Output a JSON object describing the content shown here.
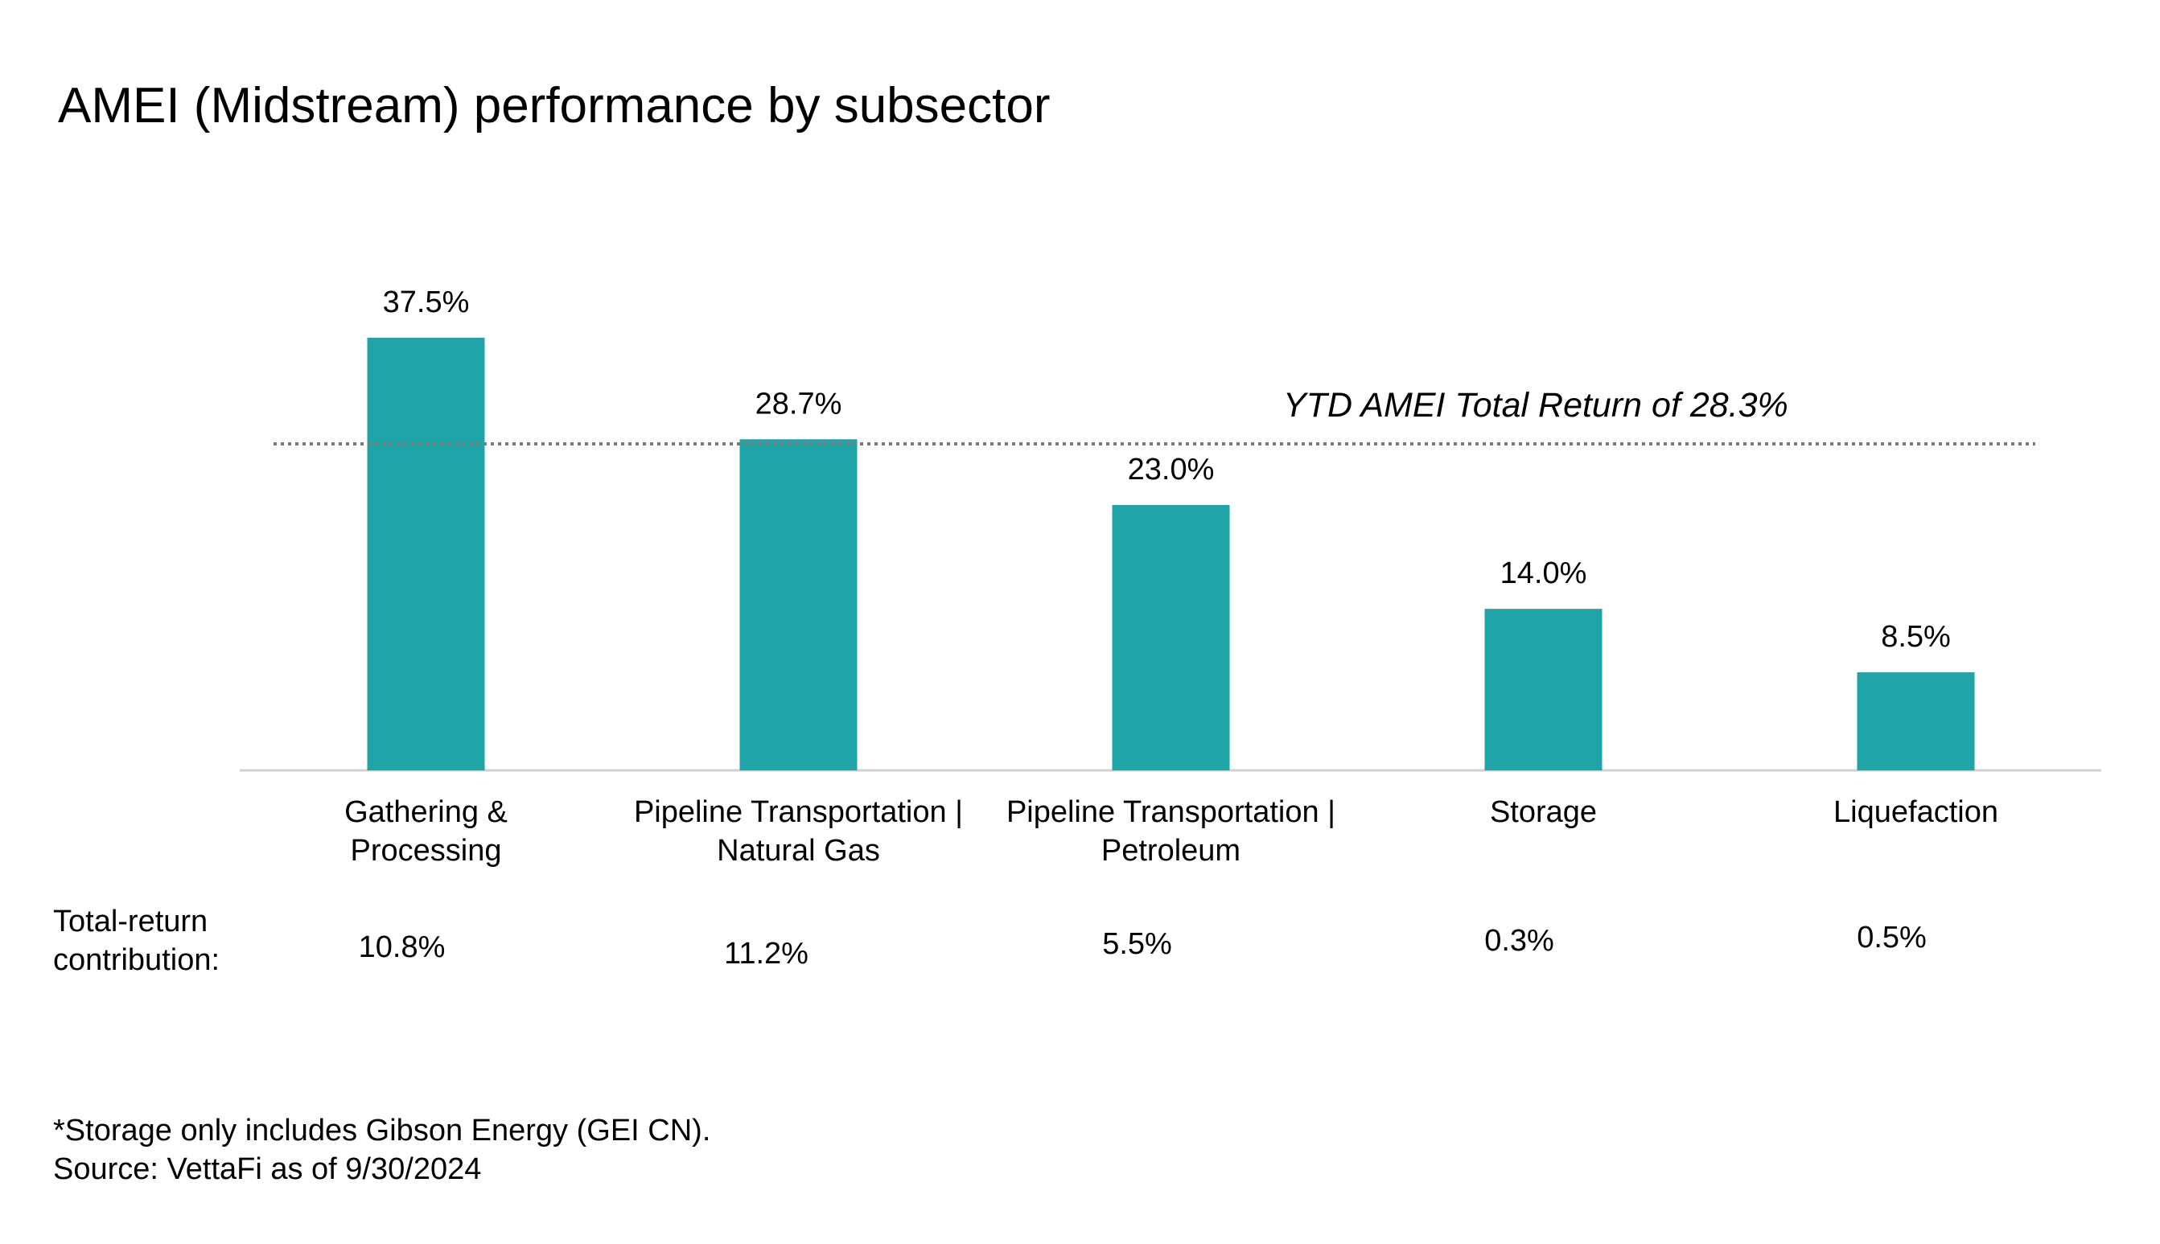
{
  "chart_data": {
    "type": "bar",
    "title": "AMEI (Midstream) performance by subsector",
    "categories": [
      [
        "Gathering &",
        "Processing"
      ],
      [
        "Pipeline Transportation |",
        "Natural Gas"
      ],
      [
        "Pipeline Transportation |",
        "Petroleum"
      ],
      [
        "Storage"
      ],
      [
        "Liquefaction"
      ]
    ],
    "values": [
      37.5,
      28.7,
      23.0,
      14.0,
      8.5
    ],
    "value_labels": [
      "37.5%",
      "28.7%",
      "23.0%",
      "14.0%",
      "8.5%"
    ],
    "bar_color": "#1fa5a8",
    "reference_line": {
      "value": 28.3,
      "label": "YTD AMEI Total Return of 28.3%",
      "style": "dotted",
      "color": "#7a7a7a"
    },
    "contribution_label": [
      "Total-return",
      "contribution:"
    ],
    "contributions": [
      "10.8%",
      "11.2%",
      "5.5%",
      "0.3%",
      "0.5%"
    ],
    "ylim": [
      0,
      37.5
    ],
    "grid": false,
    "legend": "none",
    "axis_color": "#d0d0d0"
  },
  "footnotes": [
    "*Storage only includes Gibson Energy (GEI CN).",
    "Source: VettaFi as of 9/30/2024"
  ]
}
